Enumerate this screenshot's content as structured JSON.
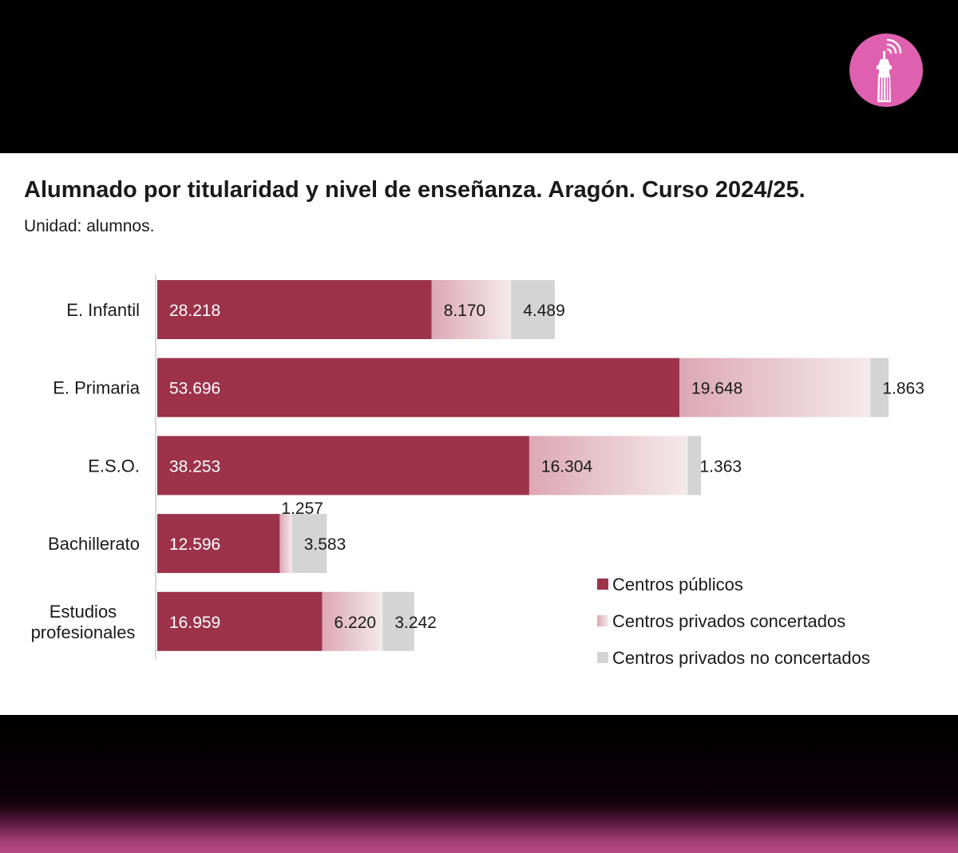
{
  "title": "Alumnado por titularidad y nivel de enseñanza. Aragón. Curso 2024/25.",
  "subtitle": "Unidad: alumnos.",
  "logo": {
    "icon": "tower-broadcast-icon",
    "color": "#e060b0"
  },
  "colors": {
    "publicos": "#9c334a",
    "concertados_start": "#dca7b4",
    "concertados_end": "#f4eaec",
    "no_concertados": "#d4d4d4",
    "axis": "#cccccc"
  },
  "legend": [
    {
      "label": "Centros públicos",
      "key": "publicos"
    },
    {
      "label": "Centros privados concertados",
      "key": "concertados"
    },
    {
      "label": "Centros privados no concertados",
      "key": "no_concertados"
    }
  ],
  "chart_data": {
    "type": "bar",
    "orientation": "horizontal",
    "stacked": true,
    "title": "Alumnado por titularidad y nivel de enseñanza. Aragón. Curso 2024/25.",
    "subtitle": "Unidad: alumnos.",
    "categories": [
      "E. Infantil",
      "E. Primaria",
      "E.S.O.",
      "Bachillerato",
      "Estudios profesionales"
    ],
    "series": [
      {
        "name": "Centros públicos",
        "values": [
          28218,
          53696,
          38253,
          12596,
          16959
        ],
        "labels": [
          "28.218",
          "53.696",
          "38.253",
          "12.596",
          "16.959"
        ]
      },
      {
        "name": "Centros privados concertados",
        "values": [
          8170,
          19648,
          16304,
          1257,
          6220
        ],
        "labels": [
          "8.170",
          "19.648",
          "16.304",
          "1.257",
          "6.220"
        ]
      },
      {
        "name": "Centros privados no concertados",
        "values": [
          4489,
          1863,
          1363,
          3583,
          3242
        ],
        "labels": [
          "4.489",
          "1.863",
          "1.363",
          "3.583",
          "3.242"
        ]
      }
    ],
    "legend_position": "bottom-right",
    "grid": false,
    "xaxis_visible": false
  }
}
